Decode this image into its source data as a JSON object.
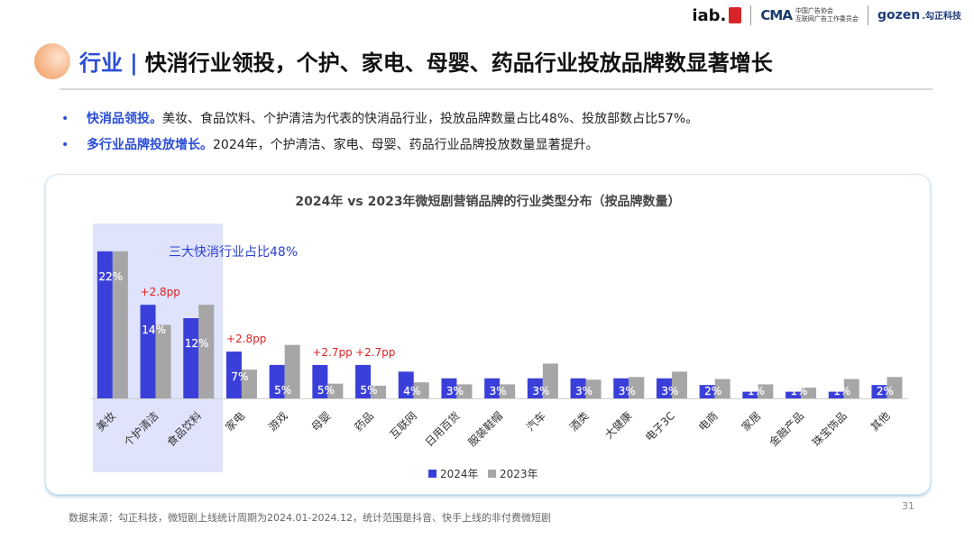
{
  "logos": {
    "iab": "iab.",
    "cmma_mark": "CMA",
    "cmma_line1": "中国广告协会",
    "cmma_line2": "互联网广告工作委员会",
    "gozen_text": "gozen",
    "gozen_cn": ".勾正科技"
  },
  "header": {
    "category": "行业",
    "separator": "|",
    "title": "快消行业领投，个护、家电、母婴、药品行业投放品牌数显著增长"
  },
  "bullets": [
    {
      "highlight": "快消品领投。",
      "text": "美妆、食品饮料、个护清洁为代表的快消品行业，投放品牌数量占比48%、投放部数占比57%。"
    },
    {
      "highlight": "多行业品牌投放增长。",
      "text": "2024年，个护清洁、家电、母婴、药品行业品牌投放数量显著提升。"
    }
  ],
  "chart_data": {
    "type": "bar",
    "title": "2024年 vs 2023年微短剧营销品牌的行业类型分布（按品牌数量）",
    "categories": [
      "美妆",
      "个护清洁",
      "食品饮料",
      "家电",
      "游戏",
      "母婴",
      "药品",
      "互联网",
      "日用百货",
      "服装鞋帽",
      "汽车",
      "酒类",
      "大健康",
      "电子3C",
      "电商",
      "家居",
      "金融产品",
      "珠宝饰品",
      "其他"
    ],
    "series": [
      {
        "name": "2024年",
        "color": "#3a3fd9",
        "values": [
          22,
          14,
          12,
          7,
          5,
          5,
          5,
          4,
          3,
          3,
          3,
          3,
          3,
          3,
          2,
          1,
          1,
          1,
          2
        ],
        "labels": [
          "22%",
          "14%",
          "12%",
          "7%",
          "5%",
          "5%",
          "5%",
          "4%",
          "3%",
          "3%",
          "3%",
          "3%",
          "3%",
          "3%",
          "2%",
          "1%",
          "1%",
          "1%",
          "2%"
        ]
      },
      {
        "name": "2023年",
        "color": "#a6a6a6",
        "values": [
          22,
          11,
          14,
          4.3,
          8,
          2.2,
          1.9,
          2.4,
          2.1,
          2.1,
          5.2,
          2.8,
          3.2,
          4.0,
          2.9,
          2.1,
          1.6,
          2.9,
          3.2
        ]
      }
    ],
    "ylim": [
      0,
      24
    ],
    "annotations": [
      {
        "category": "个护清洁",
        "text": "+2.8pp"
      },
      {
        "category": "家电",
        "text": "+2.8pp"
      },
      {
        "category": "母婴",
        "text": "+2.7pp"
      },
      {
        "category": "药品",
        "text": "+2.7pp"
      }
    ],
    "highlight_box": {
      "categories": [
        "美妆",
        "个护清洁",
        "食品饮料"
      ],
      "label": "三大快消行业占比48%",
      "color": "#dfe3fb"
    },
    "legend": {
      "placement": "bottom"
    },
    "annotation_color": "#e02020"
  },
  "footnote": "数据来源：勾正科技，微短剧上线统计周期为2024.01-2024.12，统计范围是抖音、快手上线的非付费微短剧",
  "page_number": "31"
}
